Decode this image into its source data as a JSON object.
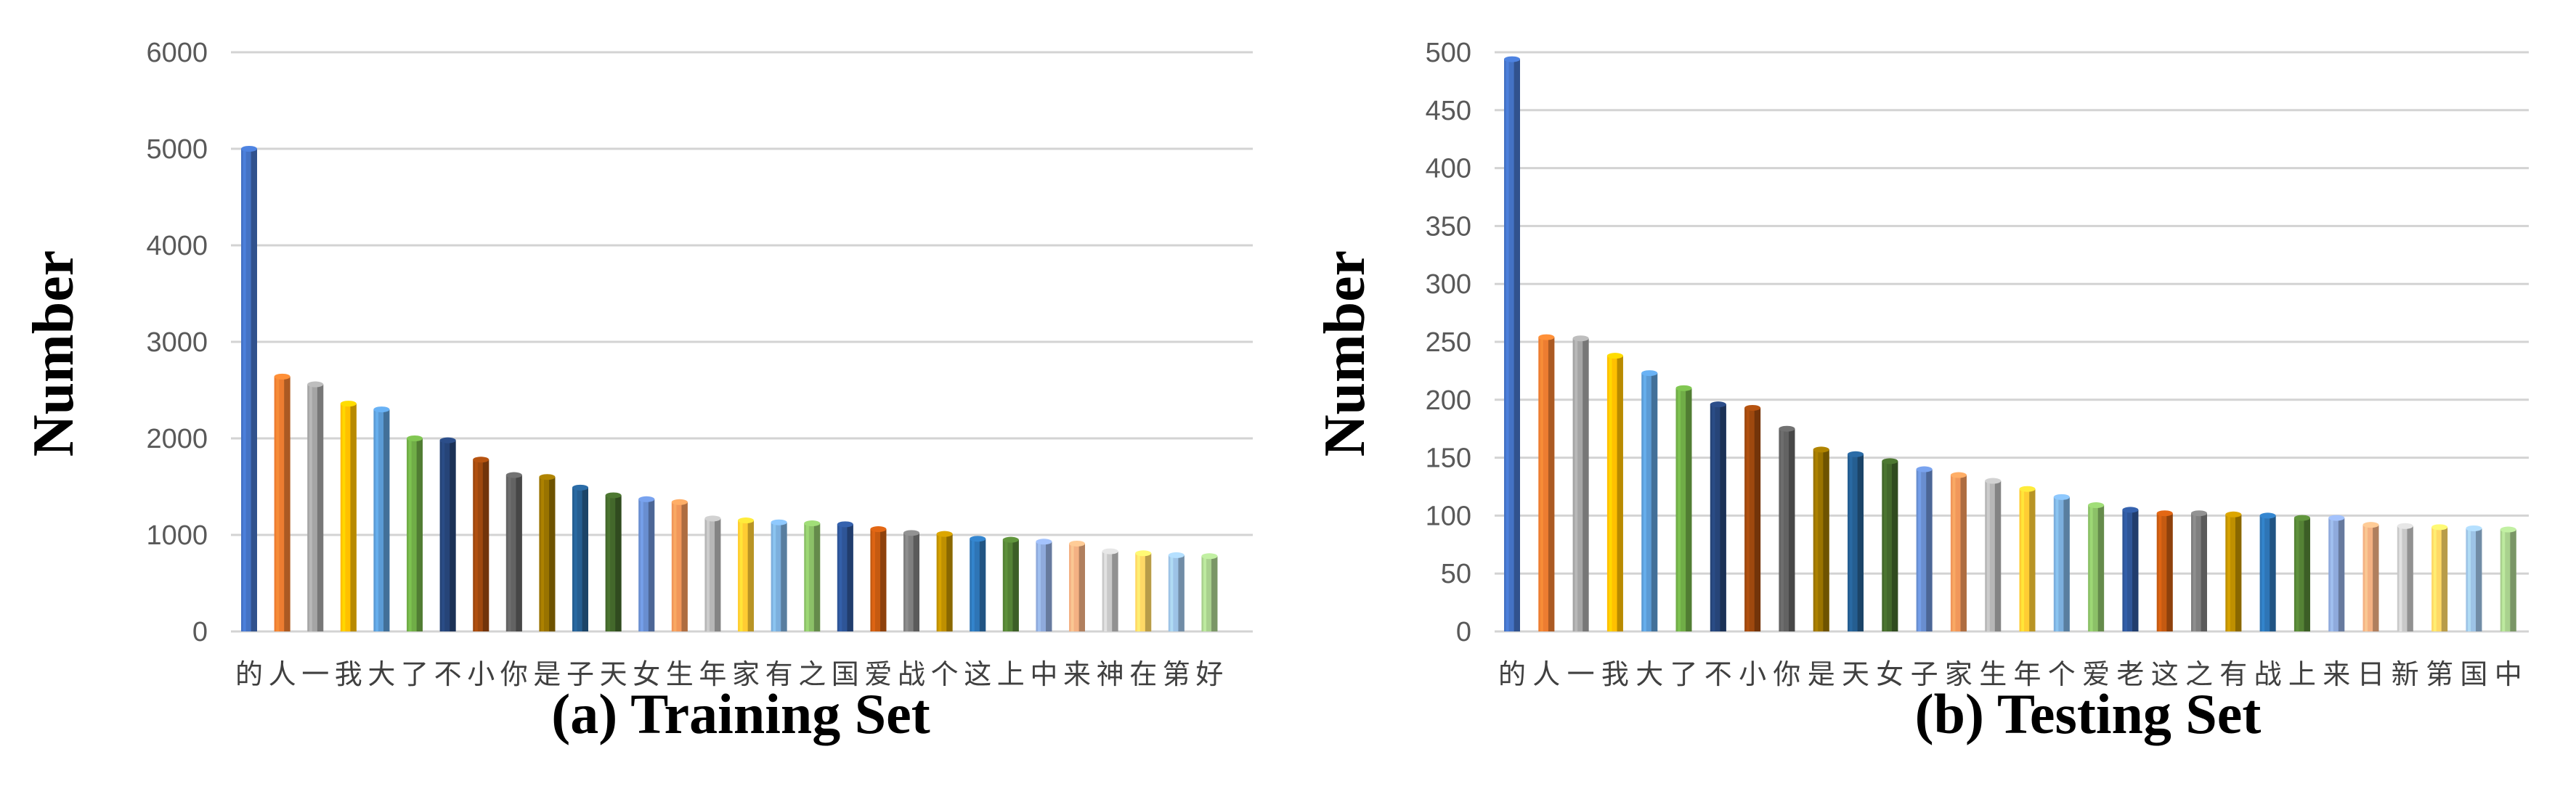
{
  "chart_data": [
    {
      "type": "bar",
      "title": "(a) Training Set",
      "xlabel": "",
      "ylabel": "Number",
      "ylim": [
        0,
        6000
      ],
      "yticks": [
        0,
        1000,
        2000,
        3000,
        4000,
        5000,
        6000
      ],
      "grid": true,
      "legend": "none",
      "categories": [
        "的",
        "人",
        "一",
        "我",
        "大",
        "了",
        "不",
        "小",
        "你",
        "是",
        "子",
        "天",
        "女",
        "生",
        "年",
        "家",
        "有",
        "之",
        "国",
        "爱",
        "战",
        "个",
        "这",
        "上",
        "中",
        "来",
        "神",
        "在",
        "第",
        "好"
      ],
      "values": [
        5000,
        2640,
        2560,
        2360,
        2300,
        2000,
        1980,
        1780,
        1620,
        1600,
        1490,
        1410,
        1370,
        1340,
        1170,
        1150,
        1130,
        1120,
        1110,
        1060,
        1020,
        1010,
        960,
        950,
        930,
        910,
        830,
        810,
        790,
        780
      ],
      "colors": [
        "#4472C4",
        "#ED7D31",
        "#A5A5A5",
        "#FFC000",
        "#5B9BD5",
        "#70AD47",
        "#264478",
        "#9E480E",
        "#636363",
        "#997300",
        "#255E91",
        "#43682B",
        "#698ED0",
        "#F1975A",
        "#B7B7B7",
        "#FFCD33",
        "#7CAFDD",
        "#8CC168",
        "#2E5597",
        "#C55A11",
        "#7F7F7F",
        "#BF9000",
        "#2E75B6",
        "#548235",
        "#8FAADC",
        "#F4B183",
        "#C9C9C9",
        "#FFD966",
        "#9DC3E6",
        "#A9D18E"
      ]
    },
    {
      "type": "bar",
      "title": "(b) Testing Set",
      "xlabel": "",
      "ylabel": "Number",
      "ylim": [
        0,
        500
      ],
      "yticks": [
        0,
        50,
        100,
        150,
        200,
        250,
        300,
        350,
        400,
        450,
        500
      ],
      "grid": true,
      "legend": "none",
      "categories": [
        "的",
        "人",
        "一",
        "我",
        "大",
        "了",
        "不",
        "小",
        "你",
        "是",
        "天",
        "女",
        "子",
        "家",
        "生",
        "年",
        "个",
        "爱",
        "老",
        "这",
        "之",
        "有",
        "战",
        "上",
        "来",
        "日",
        "新",
        "第",
        "国",
        "中"
      ],
      "values": [
        494,
        254,
        253,
        238,
        223,
        210,
        196,
        193,
        175,
        157,
        153,
        147,
        140,
        135,
        130,
        123,
        116,
        109,
        105,
        102,
        102,
        101,
        100,
        98,
        98,
        92,
        91,
        90,
        89,
        88
      ],
      "colors": [
        "#4472C4",
        "#ED7D31",
        "#A5A5A5",
        "#FFC000",
        "#5B9BD5",
        "#70AD47",
        "#264478",
        "#9E480E",
        "#636363",
        "#997300",
        "#255E91",
        "#43682B",
        "#698ED0",
        "#F1975A",
        "#B7B7B7",
        "#FFCD33",
        "#7CAFDD",
        "#8CC168",
        "#2E5597",
        "#C55A11",
        "#7F7F7F",
        "#BF9000",
        "#2E75B6",
        "#548235",
        "#8FAADC",
        "#F4B183",
        "#C9C9C9",
        "#FFD966",
        "#9DC3E6",
        "#A9D18E"
      ]
    }
  ]
}
